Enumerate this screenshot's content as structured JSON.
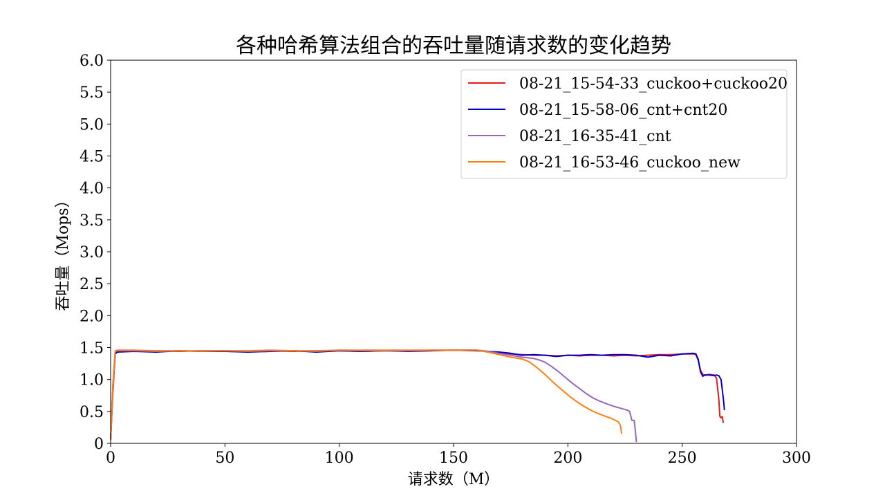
{
  "chart_data": {
    "type": "line",
    "title": "各种哈希算法组合的吞吐量随请求数的变化趋势",
    "xlabel": "请求数（M）",
    "ylabel": "吞吐量（Mops）",
    "xlim": [
      0,
      300
    ],
    "ylim": [
      0,
      6.0
    ],
    "xticks": [
      0,
      50,
      100,
      150,
      200,
      250,
      300
    ],
    "xtick_labels": [
      "0",
      "50",
      "100",
      "150",
      "200",
      "250",
      "300"
    ],
    "yticks": [
      0,
      0.5,
      1.0,
      1.5,
      2.0,
      2.5,
      3.0,
      3.5,
      4.0,
      4.5,
      5.0,
      5.5,
      6.0
    ],
    "ytick_labels": [
      "0",
      "0.5",
      "1.0",
      "1.5",
      "2.0",
      "2.5",
      "3.0",
      "3.5",
      "4.0",
      "4.5",
      "5.0",
      "5.5",
      "6.0"
    ],
    "grid": false,
    "legend_position": "top-right",
    "series": [
      {
        "name": "08-21_15-54-33_cuckoo+cuckoo20",
        "color": "#e41a1c",
        "points": [
          [
            0,
            0.05
          ],
          [
            1,
            0.8
          ],
          [
            2,
            1.4
          ],
          [
            3,
            1.45
          ],
          [
            10,
            1.44
          ],
          [
            20,
            1.45
          ],
          [
            30,
            1.44
          ],
          [
            40,
            1.45
          ],
          [
            50,
            1.45
          ],
          [
            60,
            1.44
          ],
          [
            70,
            1.45
          ],
          [
            80,
            1.44
          ],
          [
            90,
            1.45
          ],
          [
            100,
            1.45
          ],
          [
            110,
            1.44
          ],
          [
            120,
            1.45
          ],
          [
            130,
            1.45
          ],
          [
            140,
            1.45
          ],
          [
            150,
            1.46
          ],
          [
            160,
            1.46
          ],
          [
            165,
            1.44
          ],
          [
            170,
            1.42
          ],
          [
            175,
            1.4
          ],
          [
            180,
            1.39
          ],
          [
            185,
            1.38
          ],
          [
            190,
            1.38
          ],
          [
            195,
            1.37
          ],
          [
            200,
            1.38
          ],
          [
            205,
            1.37
          ],
          [
            210,
            1.38
          ],
          [
            215,
            1.38
          ],
          [
            220,
            1.37
          ],
          [
            225,
            1.38
          ],
          [
            230,
            1.37
          ],
          [
            235,
            1.38
          ],
          [
            240,
            1.39
          ],
          [
            245,
            1.39
          ],
          [
            250,
            1.4
          ],
          [
            255,
            1.4
          ],
          [
            256,
            1.39
          ],
          [
            257,
            1.3
          ],
          [
            258,
            1.15
          ],
          [
            259,
            1.08
          ],
          [
            260,
            1.07
          ],
          [
            262,
            1.08
          ],
          [
            264,
            1.07
          ],
          [
            265,
            1.02
          ],
          [
            266,
            0.7
          ],
          [
            266.5,
            0.42
          ],
          [
            267,
            0.4
          ],
          [
            267.5,
            0.42
          ],
          [
            268,
            0.32
          ]
        ]
      },
      {
        "name": "08-21_15-58-06_cnt+cnt20",
        "color": "#0000cc",
        "points": [
          [
            0,
            0.05
          ],
          [
            1,
            0.9
          ],
          [
            2,
            1.4
          ],
          [
            3,
            1.43
          ],
          [
            10,
            1.44
          ],
          [
            20,
            1.43
          ],
          [
            30,
            1.45
          ],
          [
            40,
            1.44
          ],
          [
            50,
            1.44
          ],
          [
            60,
            1.43
          ],
          [
            70,
            1.44
          ],
          [
            80,
            1.45
          ],
          [
            90,
            1.43
          ],
          [
            100,
            1.45
          ],
          [
            110,
            1.44
          ],
          [
            120,
            1.45
          ],
          [
            130,
            1.44
          ],
          [
            140,
            1.45
          ],
          [
            150,
            1.46
          ],
          [
            160,
            1.45
          ],
          [
            165,
            1.44
          ],
          [
            170,
            1.43
          ],
          [
            175,
            1.41
          ],
          [
            180,
            1.38
          ],
          [
            185,
            1.39
          ],
          [
            190,
            1.38
          ],
          [
            195,
            1.36
          ],
          [
            200,
            1.38
          ],
          [
            205,
            1.38
          ],
          [
            210,
            1.39
          ],
          [
            215,
            1.38
          ],
          [
            220,
            1.39
          ],
          [
            225,
            1.39
          ],
          [
            230,
            1.38
          ],
          [
            235,
            1.35
          ],
          [
            240,
            1.38
          ],
          [
            245,
            1.37
          ],
          [
            250,
            1.4
          ],
          [
            255,
            1.41
          ],
          [
            256,
            1.4
          ],
          [
            257,
            1.32
          ],
          [
            258,
            1.12
          ],
          [
            259,
            1.05
          ],
          [
            260,
            1.07
          ],
          [
            262,
            1.07
          ],
          [
            264,
            1.06
          ],
          [
            265,
            1.07
          ],
          [
            266,
            1.06
          ],
          [
            267,
            1.0
          ],
          [
            268,
            0.7
          ],
          [
            268.5,
            0.52
          ]
        ]
      },
      {
        "name": "08-21_16-35-41_cnt",
        "color": "#9467bd",
        "points": [
          [
            0,
            0.05
          ],
          [
            1,
            0.9
          ],
          [
            2,
            1.43
          ],
          [
            3,
            1.45
          ],
          [
            10,
            1.45
          ],
          [
            20,
            1.44
          ],
          [
            30,
            1.45
          ],
          [
            40,
            1.44
          ],
          [
            50,
            1.45
          ],
          [
            60,
            1.44
          ],
          [
            70,
            1.45
          ],
          [
            80,
            1.45
          ],
          [
            90,
            1.44
          ],
          [
            100,
            1.46
          ],
          [
            110,
            1.45
          ],
          [
            120,
            1.45
          ],
          [
            130,
            1.45
          ],
          [
            140,
            1.46
          ],
          [
            150,
            1.46
          ],
          [
            160,
            1.46
          ],
          [
            165,
            1.44
          ],
          [
            170,
            1.41
          ],
          [
            175,
            1.38
          ],
          [
            180,
            1.35
          ],
          [
            185,
            1.33
          ],
          [
            188,
            1.3
          ],
          [
            190,
            1.27
          ],
          [
            193,
            1.2
          ],
          [
            196,
            1.12
          ],
          [
            199,
            1.03
          ],
          [
            202,
            0.94
          ],
          [
            205,
            0.86
          ],
          [
            208,
            0.78
          ],
          [
            211,
            0.71
          ],
          [
            214,
            0.66
          ],
          [
            217,
            0.62
          ],
          [
            220,
            0.58
          ],
          [
            223,
            0.55
          ],
          [
            225,
            0.53
          ],
          [
            226,
            0.52
          ],
          [
            227,
            0.5
          ],
          [
            228,
            0.36
          ],
          [
            229,
            0.36
          ],
          [
            229.5,
            0.2
          ],
          [
            230,
            0.02
          ]
        ]
      },
      {
        "name": "08-21_16-53-46_cuckoo_new",
        "color": "#ff7f0e",
        "points": [
          [
            0,
            0.05
          ],
          [
            1,
            0.9
          ],
          [
            2,
            1.45
          ],
          [
            3,
            1.46
          ],
          [
            10,
            1.46
          ],
          [
            20,
            1.45
          ],
          [
            30,
            1.45
          ],
          [
            40,
            1.45
          ],
          [
            50,
            1.45
          ],
          [
            60,
            1.45
          ],
          [
            70,
            1.46
          ],
          [
            80,
            1.45
          ],
          [
            90,
            1.45
          ],
          [
            100,
            1.46
          ],
          [
            110,
            1.46
          ],
          [
            120,
            1.46
          ],
          [
            130,
            1.46
          ],
          [
            140,
            1.46
          ],
          [
            150,
            1.46
          ],
          [
            160,
            1.46
          ],
          [
            165,
            1.43
          ],
          [
            170,
            1.39
          ],
          [
            175,
            1.35
          ],
          [
            180,
            1.32
          ],
          [
            183,
            1.28
          ],
          [
            186,
            1.2
          ],
          [
            189,
            1.11
          ],
          [
            192,
            1.01
          ],
          [
            195,
            0.91
          ],
          [
            198,
            0.82
          ],
          [
            201,
            0.73
          ],
          [
            204,
            0.65
          ],
          [
            207,
            0.58
          ],
          [
            210,
            0.52
          ],
          [
            213,
            0.47
          ],
          [
            216,
            0.43
          ],
          [
            219,
            0.39
          ],
          [
            222,
            0.34
          ],
          [
            223,
            0.28
          ],
          [
            223.5,
            0.15
          ]
        ]
      }
    ]
  }
}
